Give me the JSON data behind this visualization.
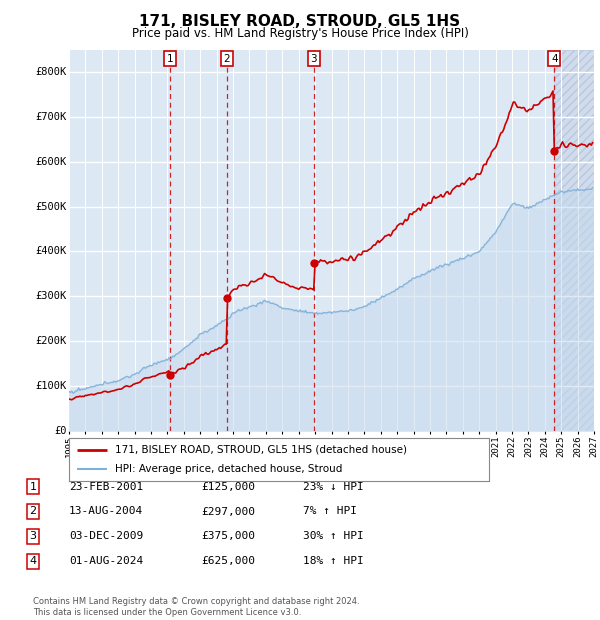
{
  "title": "171, BISLEY ROAD, STROUD, GL5 1HS",
  "subtitle": "Price paid vs. HM Land Registry's House Price Index (HPI)",
  "xlim": [
    1995,
    2027
  ],
  "ylim": [
    0,
    850000
  ],
  "yticks": [
    0,
    100000,
    200000,
    300000,
    400000,
    500000,
    600000,
    700000,
    800000
  ],
  "ytick_labels": [
    "£0",
    "£100K",
    "£200K",
    "£300K",
    "£400K",
    "£500K",
    "£600K",
    "£700K",
    "£800K"
  ],
  "sale_dates": [
    2001.14,
    2004.62,
    2009.92,
    2024.58
  ],
  "sale_prices": [
    125000,
    297000,
    375000,
    625000
  ],
  "sale_labels": [
    "1",
    "2",
    "3",
    "4"
  ],
  "legend_line1": "171, BISLEY ROAD, STROUD, GL5 1HS (detached house)",
  "legend_line2": "HPI: Average price, detached house, Stroud",
  "table_rows": [
    {
      "num": "1",
      "date": "23-FEB-2001",
      "price": "£125,000",
      "hpi": "23% ↓ HPI"
    },
    {
      "num": "2",
      "date": "13-AUG-2004",
      "price": "£297,000",
      "hpi": "7% ↑ HPI"
    },
    {
      "num": "3",
      "date": "03-DEC-2009",
      "price": "£375,000",
      "hpi": "30% ↑ HPI"
    },
    {
      "num": "4",
      "date": "01-AUG-2024",
      "price": "£625,000",
      "hpi": "18% ↑ HPI"
    }
  ],
  "footer": "Contains HM Land Registry data © Crown copyright and database right 2024.\nThis data is licensed under the Open Government Licence v3.0.",
  "plot_bg": "#dde8f5",
  "hatch_color": "#c0cfe0",
  "grid_color": "#ffffff",
  "sale_line_color": "#cc0000",
  "hpi_line_color": "#7fb0d8",
  "hpi_fill_color": "#c5d9ee",
  "future_hatch_start": 2024.58
}
